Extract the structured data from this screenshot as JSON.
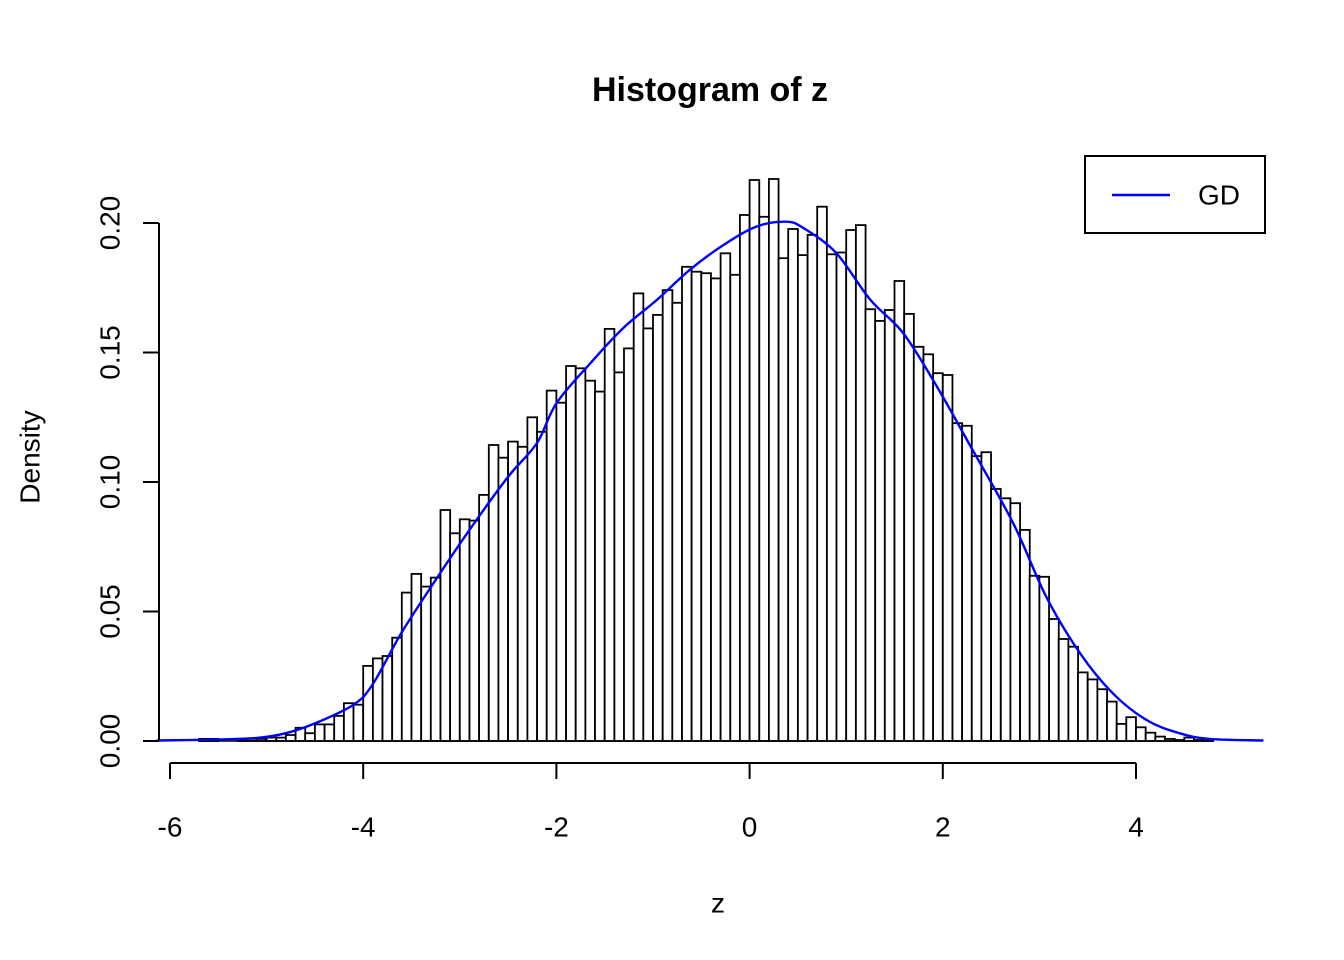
{
  "chart_data": {
    "type": "bar",
    "subtype": "histogram-with-density-curve",
    "title": "Histogram of z",
    "xlabel": "z",
    "ylabel": "Density",
    "grid": false,
    "background": "#ffffff",
    "x_axis": {
      "tick_values": [
        -6,
        -4,
        -2,
        0,
        2,
        4
      ],
      "tick_labels": [
        "-6",
        "-4",
        "-2",
        "0",
        "2",
        "4"
      ],
      "range": [
        -6.15,
        5.4
      ]
    },
    "y_axis": {
      "tick_values": [
        0.0,
        0.05,
        0.1,
        0.15,
        0.2
      ],
      "tick_labels": [
        "0.00",
        "0.05",
        "0.10",
        "0.15",
        "0.20"
      ],
      "range": [
        0,
        0.217
      ]
    },
    "bins": {
      "start": -5.7,
      "width": 0.1,
      "densities": [
        0.0008,
        0.0008,
        0,
        0,
        0.0006,
        0.0008,
        0.0008,
        0.0013,
        0.0013,
        0.0023,
        0.0051,
        0.003,
        0.0064,
        0.0064,
        0.0097,
        0.0146,
        0.014,
        0.029,
        0.0319,
        0.0328,
        0.0399,
        0.0573,
        0.0645,
        0.0596,
        0.0631,
        0.0892,
        0.0802,
        0.0856,
        0.0851,
        0.095,
        0.1143,
        0.1094,
        0.1156,
        0.1136,
        0.125,
        0.1194,
        0.1353,
        0.1306,
        0.1448,
        0.1439,
        0.1391,
        0.1349,
        0.1591,
        0.1423,
        0.1516,
        0.1728,
        0.1593,
        0.1645,
        0.1741,
        0.1692,
        0.1831,
        0.1812,
        0.1806,
        0.1786,
        0.1883,
        0.18,
        0.2031,
        0.2166,
        0.2024,
        0.217,
        0.1864,
        0.1977,
        0.1876,
        0.1954,
        0.2063,
        0.1879,
        0.1886,
        0.1973,
        0.1992,
        0.1667,
        0.1622,
        0.1664,
        0.1776,
        0.1649,
        0.1522,
        0.1493,
        0.142,
        0.1413,
        0.1227,
        0.1217,
        0.11,
        0.1115,
        0.0973,
        0.0937,
        0.0918,
        0.0815,
        0.0638,
        0.0634,
        0.0471,
        0.0394,
        0.0364,
        0.0265,
        0.0238,
        0.02,
        0.0152,
        0.0066,
        0.0092,
        0.0053,
        0.0032,
        0.0017,
        0.0008,
        0.0004,
        0.0013,
        0.0004,
        0.0008
      ]
    },
    "curve": {
      "name": "GD",
      "color": "#0000ff",
      "points": [
        [
          -6.13,
          0.0002
        ],
        [
          -5.6,
          0.0005
        ],
        [
          -5.1,
          0.0012
        ],
        [
          -4.8,
          0.003
        ],
        [
          -4.5,
          0.0068
        ],
        [
          -4.1,
          0.014
        ],
        [
          -3.9,
          0.022
        ],
        [
          -3.6,
          0.042
        ],
        [
          -3.2,
          0.065
        ],
        [
          -2.9,
          0.0815
        ],
        [
          -2.5,
          0.102
        ],
        [
          -2.2,
          0.1151
        ],
        [
          -2.0,
          0.1304
        ],
        [
          -1.65,
          0.1458
        ],
        [
          -1.31,
          0.1594
        ],
        [
          -0.96,
          0.1703
        ],
        [
          -0.62,
          0.1819
        ],
        [
          -0.27,
          0.1915
        ],
        [
          0.07,
          0.1986
        ],
        [
          0.38,
          0.2005
        ],
        [
          0.56,
          0.198
        ],
        [
          0.9,
          0.1883
        ],
        [
          1.25,
          0.1703
        ],
        [
          1.59,
          0.1575
        ],
        [
          1.94,
          0.1368
        ],
        [
          2.28,
          0.1143
        ],
        [
          2.73,
          0.084
        ],
        [
          3.07,
          0.0557
        ],
        [
          3.42,
          0.0339
        ],
        [
          3.76,
          0.0184
        ],
        [
          4.11,
          0.0081
        ],
        [
          4.45,
          0.003
        ],
        [
          4.76,
          0.0008
        ],
        [
          5.31,
          0.0002
        ]
      ]
    },
    "legend": {
      "label": "GD",
      "position": "topright",
      "line_color": "#0000ff"
    },
    "colors": {
      "bar_fill": "#ffffff",
      "bar_stroke": "#000000",
      "axis": "#000000",
      "text": "#000000"
    }
  }
}
